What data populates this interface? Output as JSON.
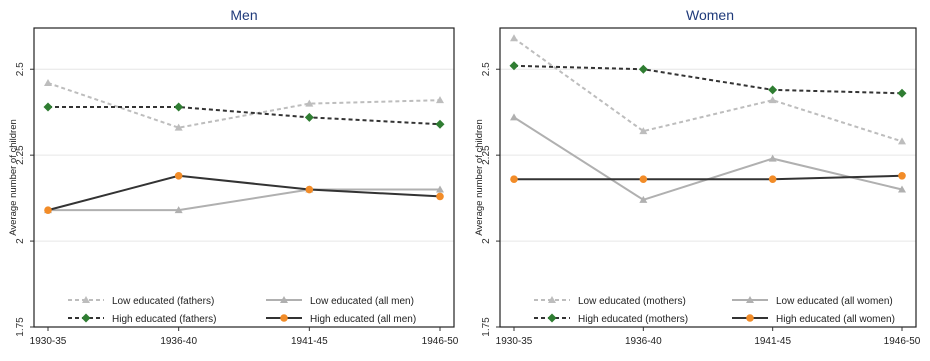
{
  "chart_data": [
    {
      "type": "line",
      "title": "Men",
      "xlabel": "",
      "ylabel": "Average number of children",
      "ylim": [
        1.75,
        2.62
      ],
      "yticks": [
        "1.75",
        "2",
        "2.25",
        "2.5"
      ],
      "categories": [
        "1930-35",
        "1936-40",
        "1941-45",
        "1946-50"
      ],
      "grid": true,
      "legend_position": "bottom",
      "series": [
        {
          "name": "Low educated (fathers)",
          "values": [
            2.46,
            2.33,
            2.4,
            2.41
          ],
          "color": "#bdbdbd",
          "dash": "dashed",
          "marker": "triangle"
        },
        {
          "name": "Low educated (all men)",
          "values": [
            2.09,
            2.09,
            2.15,
            2.15
          ],
          "color": "#b0b0b0",
          "dash": "solid",
          "marker": "triangle"
        },
        {
          "name": "High educated (fathers)",
          "values": [
            2.39,
            2.39,
            2.36,
            2.34
          ],
          "color": "#2f7d32",
          "dash": "dashed",
          "marker": "diamond"
        },
        {
          "name": "High educated (all men)",
          "values": [
            2.09,
            2.19,
            2.15,
            2.13
          ],
          "color": "#f28c28",
          "dash": "solid",
          "marker": "circle"
        }
      ]
    },
    {
      "type": "line",
      "title": "Women",
      "xlabel": "",
      "ylabel": "Average number of children",
      "ylim": [
        1.75,
        2.62
      ],
      "yticks": [
        "1.75",
        "2",
        "2.25",
        "2.5"
      ],
      "categories": [
        "1930-35",
        "1936-40",
        "1941-45",
        "1946-50"
      ],
      "grid": true,
      "legend_position": "bottom",
      "series": [
        {
          "name": "Low educated (mothers)",
          "values": [
            2.59,
            2.32,
            2.41,
            2.29
          ],
          "color": "#bdbdbd",
          "dash": "dashed",
          "marker": "triangle"
        },
        {
          "name": "Low educated (all women)",
          "values": [
            2.36,
            2.12,
            2.24,
            2.15
          ],
          "color": "#b0b0b0",
          "dash": "solid",
          "marker": "triangle"
        },
        {
          "name": "High educated (mothers)",
          "values": [
            2.51,
            2.5,
            2.44,
            2.43
          ],
          "color": "#2f7d32",
          "dash": "dashed",
          "marker": "diamond"
        },
        {
          "name": "High educated (all women)",
          "values": [
            2.18,
            2.18,
            2.18,
            2.19
          ],
          "color": "#f28c28",
          "dash": "solid",
          "marker": "circle"
        }
      ]
    }
  ]
}
